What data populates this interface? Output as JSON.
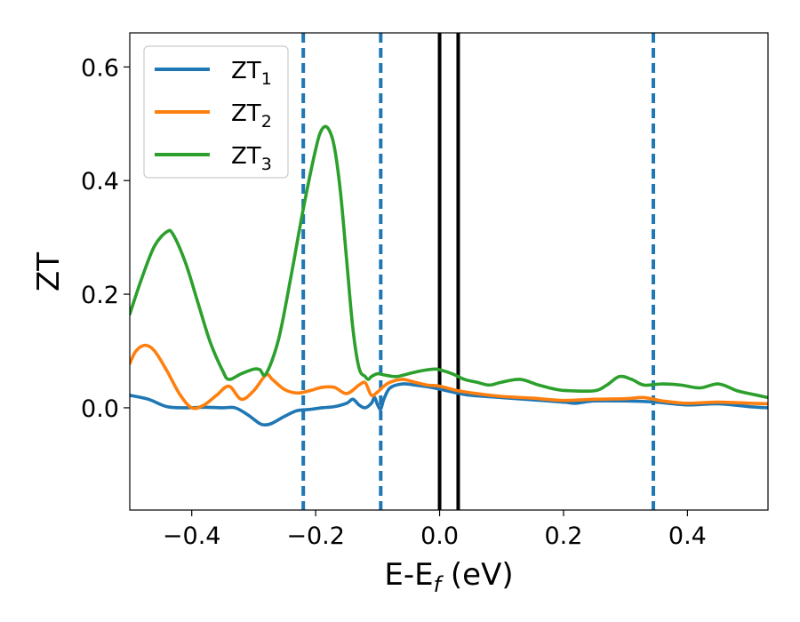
{
  "chart_data": {
    "type": "line",
    "title": "",
    "xlabel": {
      "base": "E-E",
      "sub": "f",
      "suffix": " (eV)"
    },
    "ylabel": "ZT",
    "xlim": [
      -0.5,
      0.53
    ],
    "ylim": [
      -0.18,
      0.66
    ],
    "x_ticks": [
      {
        "value": -0.4,
        "label": "−0.4"
      },
      {
        "value": -0.2,
        "label": "−0.2"
      },
      {
        "value": 0.0,
        "label": "0.0"
      },
      {
        "value": 0.2,
        "label": "0.2"
      },
      {
        "value": 0.4,
        "label": "0.4"
      }
    ],
    "y_ticks": [
      {
        "value": 0.0,
        "label": "0.0"
      },
      {
        "value": 0.2,
        "label": "0.2"
      },
      {
        "value": 0.4,
        "label": "0.4"
      },
      {
        "value": 0.6,
        "label": "0.6"
      }
    ],
    "grid": false,
    "legend_position": "top-left",
    "series": [
      {
        "name": "ZT",
        "sub": "1",
        "color": "#1f77b4",
        "x": [
          -0.5,
          -0.47,
          -0.44,
          -0.41,
          -0.38,
          -0.35,
          -0.33,
          -0.31,
          -0.29,
          -0.28,
          -0.27,
          -0.25,
          -0.23,
          -0.21,
          -0.19,
          -0.17,
          -0.15,
          -0.14,
          -0.13,
          -0.12,
          -0.11,
          -0.105,
          -0.1,
          -0.095,
          -0.09,
          -0.08,
          -0.06,
          -0.04,
          -0.02,
          0.0,
          0.02,
          0.05,
          0.1,
          0.15,
          0.2,
          0.22,
          0.25,
          0.3,
          0.35,
          0.4,
          0.45,
          0.5,
          0.53
        ],
        "y": [
          0.022,
          0.015,
          0.002,
          0.0,
          0.001,
          0.0,
          0.0,
          -0.012,
          -0.028,
          -0.03,
          -0.027,
          -0.015,
          -0.005,
          -0.003,
          0.0,
          0.002,
          0.008,
          0.015,
          0.005,
          0.0,
          0.008,
          0.018,
          0.005,
          -0.002,
          0.015,
          0.035,
          0.042,
          0.04,
          0.037,
          0.033,
          0.028,
          0.022,
          0.018,
          0.014,
          0.01,
          0.008,
          0.012,
          0.012,
          0.01,
          0.005,
          0.007,
          0.002,
          0.0
        ]
      },
      {
        "name": "ZT",
        "sub": "2",
        "color": "#ff7f0e",
        "x": [
          -0.5,
          -0.49,
          -0.475,
          -0.46,
          -0.44,
          -0.42,
          -0.4,
          -0.38,
          -0.36,
          -0.34,
          -0.32,
          -0.3,
          -0.28,
          -0.27,
          -0.25,
          -0.23,
          -0.21,
          -0.19,
          -0.17,
          -0.15,
          -0.13,
          -0.12,
          -0.11,
          -0.1,
          -0.09,
          -0.08,
          -0.06,
          -0.04,
          -0.02,
          0.0,
          0.03,
          0.06,
          0.1,
          0.15,
          0.2,
          0.25,
          0.3,
          0.33,
          0.36,
          0.4,
          0.45,
          0.5,
          0.53
        ],
        "y": [
          0.078,
          0.1,
          0.11,
          0.1,
          0.065,
          0.025,
          0.0,
          0.005,
          0.022,
          0.038,
          0.015,
          0.03,
          0.058,
          0.05,
          0.032,
          0.026,
          0.03,
          0.036,
          0.036,
          0.025,
          0.04,
          0.044,
          0.022,
          0.028,
          0.038,
          0.045,
          0.05,
          0.045,
          0.04,
          0.038,
          0.03,
          0.025,
          0.02,
          0.017,
          0.013,
          0.015,
          0.016,
          0.018,
          0.012,
          0.008,
          0.01,
          0.008,
          0.007
        ]
      },
      {
        "name": "ZT",
        "sub": "3",
        "color": "#2ca02c",
        "x": [
          -0.5,
          -0.48,
          -0.46,
          -0.44,
          -0.43,
          -0.41,
          -0.39,
          -0.37,
          -0.35,
          -0.34,
          -0.32,
          -0.3,
          -0.29,
          -0.28,
          -0.26,
          -0.24,
          -0.22,
          -0.2,
          -0.19,
          -0.18,
          -0.17,
          -0.16,
          -0.15,
          -0.14,
          -0.13,
          -0.12,
          -0.115,
          -0.11,
          -0.1,
          -0.09,
          -0.07,
          -0.05,
          -0.03,
          -0.01,
          0.0,
          0.02,
          0.04,
          0.06,
          0.08,
          0.1,
          0.13,
          0.16,
          0.19,
          0.21,
          0.25,
          0.27,
          0.29,
          0.31,
          0.33,
          0.36,
          0.39,
          0.42,
          0.45,
          0.48,
          0.5,
          0.53
        ],
        "y": [
          0.165,
          0.23,
          0.285,
          0.31,
          0.305,
          0.255,
          0.185,
          0.115,
          0.065,
          0.05,
          0.06,
          0.068,
          0.067,
          0.06,
          0.12,
          0.23,
          0.35,
          0.455,
          0.49,
          0.492,
          0.46,
          0.38,
          0.26,
          0.14,
          0.07,
          0.055,
          0.05,
          0.055,
          0.06,
          0.058,
          0.055,
          0.06,
          0.065,
          0.068,
          0.067,
          0.06,
          0.05,
          0.045,
          0.04,
          0.045,
          0.05,
          0.04,
          0.032,
          0.03,
          0.03,
          0.04,
          0.055,
          0.05,
          0.04,
          0.042,
          0.04,
          0.035,
          0.042,
          0.03,
          0.025,
          0.018
        ]
      }
    ],
    "vlines_dashed": {
      "color": "#1f77b4",
      "x": [
        -0.22,
        -0.095,
        0.345
      ]
    },
    "vlines_solid": {
      "color": "#000000",
      "x": [
        0.0,
        0.03
      ]
    }
  }
}
